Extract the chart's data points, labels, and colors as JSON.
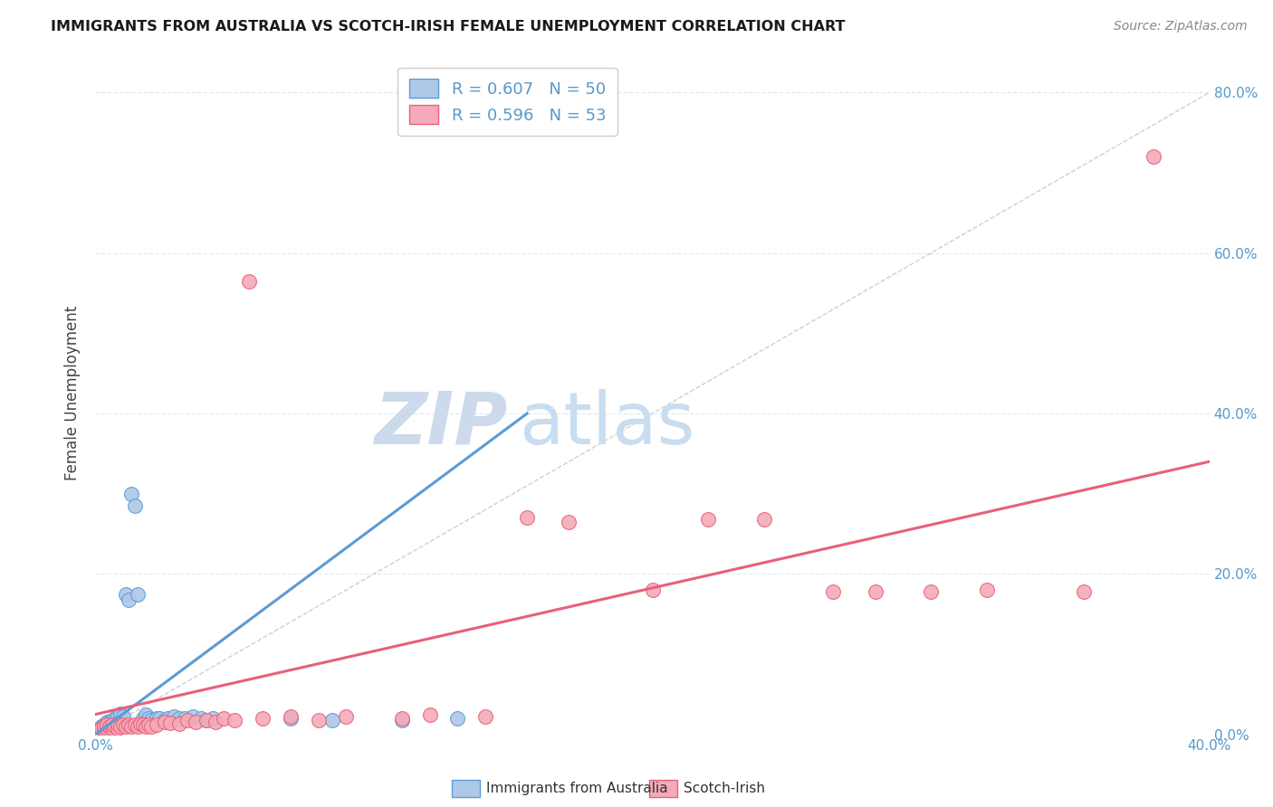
{
  "title": "IMMIGRANTS FROM AUSTRALIA VS SCOTCH-IRISH FEMALE UNEMPLOYMENT CORRELATION CHART",
  "source": "Source: ZipAtlas.com",
  "ylabel": "Female Unemployment",
  "ylabel_right_ticks": [
    "0.0%",
    "20.0%",
    "40.0%",
    "60.0%",
    "80.0%"
  ],
  "ylabel_right_vals": [
    0.0,
    0.2,
    0.4,
    0.6,
    0.8
  ],
  "xlim": [
    0.0,
    0.4
  ],
  "ylim": [
    0.0,
    0.85
  ],
  "blue_scatter": [
    [
      0.001,
      0.003
    ],
    [
      0.001,
      0.006
    ],
    [
      0.002,
      0.005
    ],
    [
      0.002,
      0.008
    ],
    [
      0.002,
      0.01
    ],
    [
      0.003,
      0.004
    ],
    [
      0.003,
      0.007
    ],
    [
      0.003,
      0.01
    ],
    [
      0.003,
      0.012
    ],
    [
      0.004,
      0.006
    ],
    [
      0.004,
      0.009
    ],
    [
      0.004,
      0.013
    ],
    [
      0.004,
      0.016
    ],
    [
      0.005,
      0.005
    ],
    [
      0.005,
      0.01
    ],
    [
      0.005,
      0.015
    ],
    [
      0.006,
      0.008
    ],
    [
      0.006,
      0.013
    ],
    [
      0.006,
      0.018
    ],
    [
      0.007,
      0.012
    ],
    [
      0.007,
      0.02
    ],
    [
      0.008,
      0.015
    ],
    [
      0.008,
      0.022
    ],
    [
      0.009,
      0.018
    ],
    [
      0.009,
      0.026
    ],
    [
      0.01,
      0.022
    ],
    [
      0.011,
      0.175
    ],
    [
      0.012,
      0.168
    ],
    [
      0.013,
      0.3
    ],
    [
      0.014,
      0.285
    ],
    [
      0.015,
      0.175
    ],
    [
      0.017,
      0.02
    ],
    [
      0.018,
      0.025
    ],
    [
      0.019,
      0.02
    ],
    [
      0.02,
      0.018
    ],
    [
      0.022,
      0.02
    ],
    [
      0.023,
      0.02
    ],
    [
      0.025,
      0.018
    ],
    [
      0.026,
      0.02
    ],
    [
      0.028,
      0.022
    ],
    [
      0.03,
      0.02
    ],
    [
      0.032,
      0.02
    ],
    [
      0.035,
      0.022
    ],
    [
      0.038,
      0.02
    ],
    [
      0.04,
      0.018
    ],
    [
      0.042,
      0.02
    ],
    [
      0.07,
      0.02
    ],
    [
      0.085,
      0.018
    ],
    [
      0.11,
      0.018
    ],
    [
      0.13,
      0.02
    ]
  ],
  "pink_scatter": [
    [
      0.001,
      0.005
    ],
    [
      0.002,
      0.008
    ],
    [
      0.003,
      0.006
    ],
    [
      0.003,
      0.01
    ],
    [
      0.004,
      0.008
    ],
    [
      0.004,
      0.012
    ],
    [
      0.005,
      0.01
    ],
    [
      0.006,
      0.008
    ],
    [
      0.006,
      0.012
    ],
    [
      0.007,
      0.01
    ],
    [
      0.008,
      0.008
    ],
    [
      0.008,
      0.013
    ],
    [
      0.009,
      0.01
    ],
    [
      0.01,
      0.012
    ],
    [
      0.011,
      0.01
    ],
    [
      0.012,
      0.012
    ],
    [
      0.013,
      0.01
    ],
    [
      0.014,
      0.012
    ],
    [
      0.015,
      0.01
    ],
    [
      0.016,
      0.013
    ],
    [
      0.017,
      0.012
    ],
    [
      0.018,
      0.01
    ],
    [
      0.019,
      0.012
    ],
    [
      0.02,
      0.01
    ],
    [
      0.022,
      0.012
    ],
    [
      0.025,
      0.015
    ],
    [
      0.027,
      0.014
    ],
    [
      0.03,
      0.013
    ],
    [
      0.033,
      0.018
    ],
    [
      0.036,
      0.016
    ],
    [
      0.04,
      0.018
    ],
    [
      0.043,
      0.016
    ],
    [
      0.046,
      0.02
    ],
    [
      0.05,
      0.018
    ],
    [
      0.055,
      0.565
    ],
    [
      0.06,
      0.02
    ],
    [
      0.07,
      0.022
    ],
    [
      0.08,
      0.018
    ],
    [
      0.09,
      0.022
    ],
    [
      0.11,
      0.02
    ],
    [
      0.12,
      0.025
    ],
    [
      0.14,
      0.022
    ],
    [
      0.155,
      0.27
    ],
    [
      0.17,
      0.265
    ],
    [
      0.2,
      0.18
    ],
    [
      0.22,
      0.268
    ],
    [
      0.24,
      0.268
    ],
    [
      0.265,
      0.178
    ],
    [
      0.28,
      0.178
    ],
    [
      0.3,
      0.178
    ],
    [
      0.32,
      0.18
    ],
    [
      0.355,
      0.178
    ],
    [
      0.38,
      0.72
    ]
  ],
  "blue_line": [
    [
      0.0,
      0.0
    ],
    [
      0.155,
      0.4
    ]
  ],
  "pink_line": [
    [
      0.0,
      0.025
    ],
    [
      0.4,
      0.34
    ]
  ],
  "diag_line": [
    [
      0.0,
      0.0
    ],
    [
      0.425,
      0.85
    ]
  ],
  "blue_color": "#5b9bd5",
  "pink_color": "#e8607a",
  "blue_fill": "#aec8e8",
  "pink_fill": "#f4aab8",
  "diag_color": "#bbbbbb",
  "watermark_zip_color": "#ccdaeb",
  "watermark_atlas_color": "#c8ddf0",
  "background_color": "#ffffff",
  "grid_color": "#dde8f0",
  "tick_color": "#5599cc",
  "legend_box_color": "#cccccc"
}
